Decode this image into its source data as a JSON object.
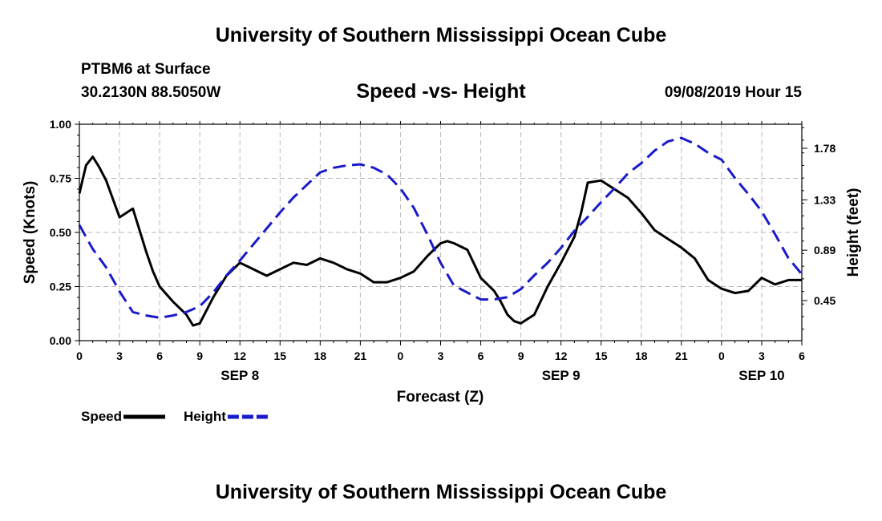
{
  "header": {
    "title_top": "University of Southern Mississippi Ocean Cube",
    "title_bottom": "University of Southern Mississippi Ocean Cube",
    "station": "PTBM6 at Surface",
    "coords": "30.2130N 88.5050W",
    "datetime": "09/08/2019 Hour 15"
  },
  "chart_data": {
    "type": "line",
    "title": "Speed -vs- Height",
    "xlabel": "Forecast (Z)",
    "ylabel": "Speed (Knots)",
    "y2label": "Height (feet)",
    "xlim": [
      0,
      54
    ],
    "ylim": [
      0,
      1
    ],
    "y2lim": [
      0.1,
      1.99
    ],
    "x_ticks": [
      {
        "x": 0,
        "label": "0"
      },
      {
        "x": 3,
        "label": "3"
      },
      {
        "x": 6,
        "label": "6"
      },
      {
        "x": 9,
        "label": "9"
      },
      {
        "x": 12,
        "label": "12"
      },
      {
        "x": 15,
        "label": "15"
      },
      {
        "x": 18,
        "label": "18"
      },
      {
        "x": 21,
        "label": "21"
      },
      {
        "x": 24,
        "label": "0"
      },
      {
        "x": 27,
        "label": "3"
      },
      {
        "x": 30,
        "label": "6"
      },
      {
        "x": 33,
        "label": "9"
      },
      {
        "x": 36,
        "label": "12"
      },
      {
        "x": 39,
        "label": "15"
      },
      {
        "x": 42,
        "label": "18"
      },
      {
        "x": 45,
        "label": "21"
      },
      {
        "x": 48,
        "label": "0"
      },
      {
        "x": 51,
        "label": "3"
      },
      {
        "x": 54,
        "label": "6"
      }
    ],
    "date_labels": [
      {
        "x": 12,
        "label": "SEP 8"
      },
      {
        "x": 36,
        "label": "SEP 9"
      },
      {
        "x": 51,
        "label": "SEP 10"
      }
    ],
    "y_ticks": [
      "0.00",
      "0.25",
      "0.50",
      "0.75",
      "1.00"
    ],
    "y2_ticks": [
      {
        "value": 0.45,
        "label": "0.45"
      },
      {
        "value": 0.89,
        "label": "0.89"
      },
      {
        "value": 1.33,
        "label": "1.33"
      },
      {
        "value": 1.78,
        "label": "1.78"
      }
    ],
    "grid": true,
    "legend": [
      {
        "name": "Speed",
        "color": "#000000",
        "style": "solid"
      },
      {
        "name": "Height",
        "color": "#1a1acc",
        "style": "dashed"
      }
    ],
    "series": [
      {
        "name": "Speed",
        "axis": "left",
        "color": "#000000",
        "x": [
          0,
          0.5,
          1,
          1.5,
          2,
          3,
          4,
          4.5,
          5,
          5.5,
          6,
          7,
          8,
          8.5,
          9,
          10,
          11,
          12,
          13,
          14,
          15,
          16,
          17,
          18,
          19,
          20,
          21,
          22,
          23,
          24,
          25,
          26,
          27,
          27.5,
          28,
          29,
          30,
          31,
          31.5,
          32,
          32.5,
          33,
          34,
          35,
          36,
          37,
          37.5,
          38,
          39,
          40,
          41,
          42,
          43,
          44,
          45,
          46,
          47,
          48,
          49,
          50,
          51,
          52,
          53,
          54
        ],
        "values": [
          0.68,
          0.81,
          0.85,
          0.8,
          0.74,
          0.57,
          0.61,
          0.51,
          0.41,
          0.32,
          0.25,
          0.18,
          0.12,
          0.07,
          0.08,
          0.2,
          0.3,
          0.36,
          0.33,
          0.3,
          0.33,
          0.36,
          0.35,
          0.38,
          0.36,
          0.33,
          0.31,
          0.27,
          0.27,
          0.29,
          0.32,
          0.39,
          0.45,
          0.46,
          0.45,
          0.42,
          0.29,
          0.23,
          0.18,
          0.12,
          0.09,
          0.08,
          0.12,
          0.25,
          0.36,
          0.48,
          0.59,
          0.73,
          0.74,
          0.7,
          0.66,
          0.59,
          0.51,
          0.47,
          0.43,
          0.38,
          0.28,
          0.24,
          0.22,
          0.23,
          0.29,
          0.26,
          0.28,
          0.28
        ]
      },
      {
        "name": "Height",
        "axis": "right",
        "color": "#1a1acc",
        "x": [
          0,
          1,
          2,
          3,
          4,
          5,
          6,
          7,
          8,
          9,
          10,
          11,
          12,
          13,
          14,
          15,
          16,
          17,
          18,
          19,
          20,
          21,
          22,
          23,
          24,
          25,
          26,
          27,
          28,
          29,
          30,
          31,
          32,
          33,
          34,
          35,
          36,
          37,
          38,
          39,
          40,
          41,
          42,
          43,
          44,
          45,
          46,
          47,
          48,
          49,
          50,
          51,
          52,
          53,
          54
        ],
        "values": [
          1.11,
          0.9,
          0.74,
          0.53,
          0.35,
          0.32,
          0.3,
          0.32,
          0.35,
          0.4,
          0.52,
          0.67,
          0.8,
          0.94,
          1.08,
          1.22,
          1.35,
          1.46,
          1.57,
          1.61,
          1.63,
          1.64,
          1.61,
          1.55,
          1.43,
          1.26,
          1.03,
          0.78,
          0.58,
          0.52,
          0.46,
          0.46,
          0.48,
          0.55,
          0.67,
          0.78,
          0.91,
          1.06,
          1.18,
          1.31,
          1.43,
          1.56,
          1.65,
          1.76,
          1.84,
          1.87,
          1.82,
          1.74,
          1.68,
          1.52,
          1.38,
          1.23,
          1.03,
          0.82,
          0.68
        ]
      }
    ]
  }
}
